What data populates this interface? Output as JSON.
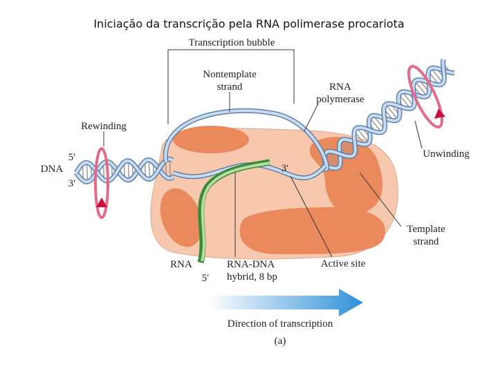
{
  "title": "Iniciação da transcrição pela RNA polimerase procariota",
  "labels": {
    "transcription_bubble": "Transcription bubble",
    "nontemplate_strand": [
      "Nontemplate",
      "strand"
    ],
    "rna_polymerase": [
      "RNA",
      "polymerase"
    ],
    "rewinding": "Rewinding",
    "unwinding": "Unwinding",
    "dna_5": "5′",
    "dna": "DNA",
    "dna_3": "3′",
    "active_3": "3′",
    "template_strand": [
      "Template",
      "strand"
    ],
    "rna": "RNA",
    "rna_5": "5′",
    "hybrid": [
      "RNA-DNA",
      "hybrid, 8 bp"
    ],
    "active_site": "Active site",
    "direction": "Direction of transcription",
    "panel": "(a)"
  }
}
